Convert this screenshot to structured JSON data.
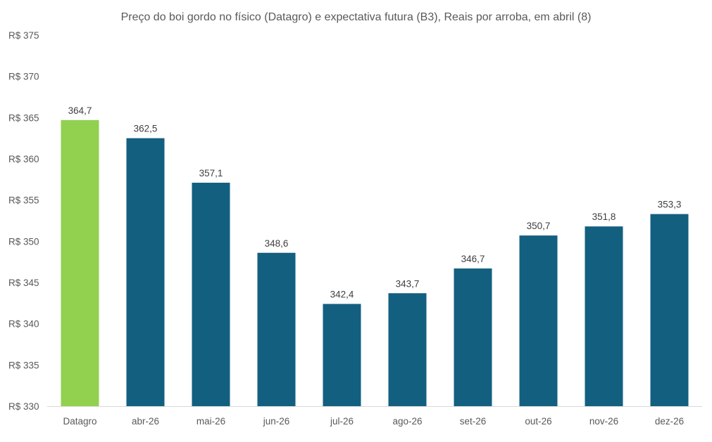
{
  "chart_data": {
    "type": "bar",
    "title": "Preço do boi gordo no físico (Datagro)  e expectativa futura (B3), Reais por arroba, em abril (8)",
    "categories": [
      "Datagro",
      "abr-26",
      "mai-26",
      "jun-26",
      "jul-26",
      "ago-26",
      "set-26",
      "out-26",
      "nov-26",
      "dez-26"
    ],
    "values": [
      364.7,
      362.5,
      357.1,
      348.6,
      342.4,
      343.7,
      346.7,
      350.7,
      351.8,
      353.3
    ],
    "value_labels": [
      "364,7",
      "362,5",
      "357,1",
      "348,6",
      "342,4",
      "343,7",
      "346,7",
      "350,7",
      "351,8",
      "353,3"
    ],
    "ylim": [
      330,
      375
    ],
    "y_ticks": [
      330,
      335,
      340,
      345,
      350,
      355,
      360,
      365,
      370,
      375
    ],
    "y_tick_labels": [
      "R$ 330",
      "R$ 335",
      "R$ 340",
      "R$ 345",
      "R$ 350",
      "R$ 355",
      "R$ 360",
      "R$ 365",
      "R$ 370",
      "R$ 375"
    ],
    "xlabel": "",
    "ylabel": "",
    "grid": false,
    "legend": "none",
    "colors": {
      "highlight_bar": "#92D050",
      "bar": "#135F80",
      "axis": "#D9D9D9"
    },
    "highlight_index": 0
  }
}
